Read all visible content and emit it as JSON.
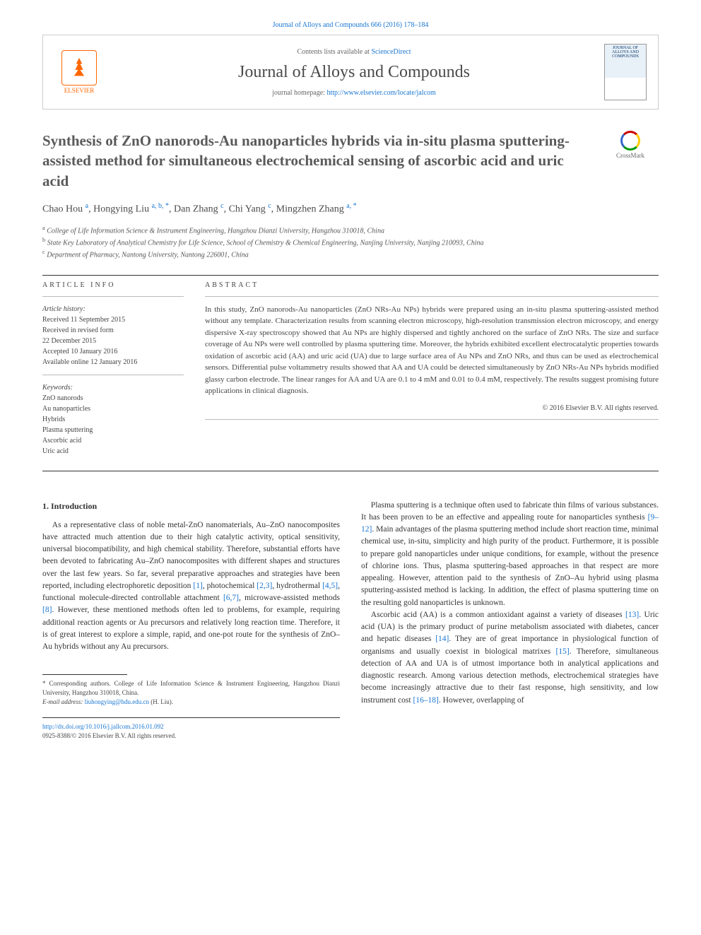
{
  "top_citation": "Journal of Alloys and Compounds 666 (2016) 178–184",
  "header": {
    "publisher_name": "ELSEVIER",
    "contents_text": "Contents lists available at ",
    "sciencedirect": "ScienceDirect",
    "journal_name": "Journal of Alloys and Compounds",
    "homepage_label": "journal homepage: ",
    "homepage_url": "http://www.elsevier.com/locate/jalcom",
    "cover_text": "JOURNAL OF ALLOYS AND COMPOUNDS"
  },
  "crossmark_label": "CrossMark",
  "title": "Synthesis of ZnO nanorods-Au nanoparticles hybrids via in-situ plasma sputtering-assisted method for simultaneous electrochemical sensing of ascorbic acid and uric acid",
  "authors_html_parts": [
    {
      "name": "Chao Hou ",
      "sup": "a"
    },
    {
      "name": ", Hongying Liu ",
      "sup": "a, b, *"
    },
    {
      "name": ", Dan Zhang ",
      "sup": "c"
    },
    {
      "name": ", Chi Yang ",
      "sup": "c"
    },
    {
      "name": ", Mingzhen Zhang ",
      "sup": "a, *"
    }
  ],
  "affiliations": [
    {
      "sup": "a",
      "text": " College of Life Information Science & Instrument Engineering, Hangzhou Dianzi University, Hangzhou 310018, China"
    },
    {
      "sup": "b",
      "text": " State Key Laboratory of Analytical Chemistry for Life Science, School of Chemistry & Chemical Engineering, Nanjing University, Nanjing 210093, China"
    },
    {
      "sup": "c",
      "text": " Department of Pharmacy, Nantong University, Nantong 226001, China"
    }
  ],
  "article_info": {
    "label": "ARTICLE INFO",
    "history_label": "Article history:",
    "history": [
      "Received 11 September 2015",
      "Received in revised form",
      "22 December 2015",
      "Accepted 10 January 2016",
      "Available online 12 January 2016"
    ],
    "keywords_label": "Keywords:",
    "keywords": [
      "ZnO nanorods",
      "Au nanoparticles",
      "Hybrids",
      "Plasma sputtering",
      "Ascorbic acid",
      "Uric acid"
    ]
  },
  "abstract": {
    "label": "ABSTRACT",
    "text": "In this study, ZnO nanorods-Au nanoparticles (ZnO NRs-Au NPs) hybrids were prepared using an in-situ plasma sputtering-assisted method without any template. Characterization results from scanning electron microscopy, high-resolution transmission electron microscopy, and energy dispersive X-ray spectroscopy showed that Au NPs are highly dispersed and tightly anchored on the surface of ZnO NRs. The size and surface coverage of Au NPs were well controlled by plasma sputtering time. Moreover, the hybrids exhibited excellent electrocatalytic properties towards oxidation of ascorbic acid (AA) and uric acid (UA) due to large surface area of Au NPs and ZnO NRs, and thus can be used as electrochemical sensors. Differential pulse voltammetry results showed that AA and UA could be detected simultaneously by ZnO NRs-Au NPs hybrids modified glassy carbon electrode. The linear ranges for AA and UA are 0.1 to 4 mM and 0.01 to 0.4 mM, respectively. The results suggest promising future applications in clinical diagnosis.",
    "copyright": "© 2016 Elsevier B.V. All rights reserved."
  },
  "body": {
    "intro_heading": "1. Introduction",
    "col1_p1_a": "As a representative class of noble metal-ZnO nanomaterials, Au–ZnO nanocomposites have attracted much attention due to their high catalytic activity, optical sensitivity, universal biocompatibility, and high chemical stability. Therefore, substantial efforts have been devoted to fabricating Au–ZnO nanocomposites with different shapes and structures over the last few years. So far, several preparative approaches and strategies have been reported, including electrophoretic deposition ",
    "ref1": "[1]",
    "col1_p1_b": ", photochemical ",
    "ref23": "[2,3]",
    "col1_p1_c": ", hydrothermal ",
    "ref45": "[4,5]",
    "col1_p1_d": ", functional molecule-directed controllable attachment ",
    "ref67": "[6,7]",
    "col1_p1_e": ", microwave-assisted methods ",
    "ref8": "[8]",
    "col1_p1_f": ". However, these mentioned methods often led to problems, for example, requiring additional reaction agents or Au precursors and relatively long reaction time. Therefore, it is of great interest to explore a simple, rapid, and one-pot route for the synthesis of ZnO–Au hybrids without any Au precursors.",
    "col2_p1_a": "Plasma sputtering is a technique often used to fabricate thin films of various substances. It has been proven to be an effective and appealing route for nanoparticles synthesis ",
    "ref912": "[9–12]",
    "col2_p1_b": ". Main advantages of the plasma sputtering method include short reaction time, minimal chemical use, in-situ, simplicity and high purity of the product. Furthermore, it is possible to prepare gold nanoparticles under unique conditions, for example, without the presence of chlorine ions. Thus, plasma sputtering-based approaches in that respect are more appealing. However, attention paid to the synthesis of ZnO–Au hybrid using plasma sputtering-assisted method is lacking. In addition, the effect of plasma sputtering time on the resulting gold nanoparticles is unknown.",
    "col2_p2_a": "Ascorbic acid (AA) is a common antioxidant against a variety of diseases ",
    "ref13": "[13]",
    "col2_p2_b": ". Uric acid (UA) is the primary product of purine metabolism associated with diabetes, cancer and hepatic diseases ",
    "ref14": "[14]",
    "col2_p2_c": ". They are of great importance in physiological function of organisms and usually coexist in biological matrixes ",
    "ref15": "[15]",
    "col2_p2_d": ". Therefore, simultaneous detection of AA and UA is of utmost importance both in analytical applications and diagnostic research. Among various detection methods, electrochemical strategies have become increasingly attractive due to their fast response, high sensitivity, and low instrument cost ",
    "ref1618": "[16–18]",
    "col2_p2_e": ". However, overlapping of"
  },
  "footnote": {
    "corr": "* Corresponding authors. College of Life Information Science & Instrument Engineering, Hangzhou Dianzi University, Hangzhou 310018, China.",
    "email_label": "E-mail address: ",
    "email": "liuhongying@hdu.edu.cn",
    "email_suffix": " (H. Liu)."
  },
  "bottom": {
    "doi": "http://dx.doi.org/10.1016/j.jallcom.2016.01.092",
    "issn_line": "0925-8388/© 2016 Elsevier B.V. All rights reserved."
  }
}
